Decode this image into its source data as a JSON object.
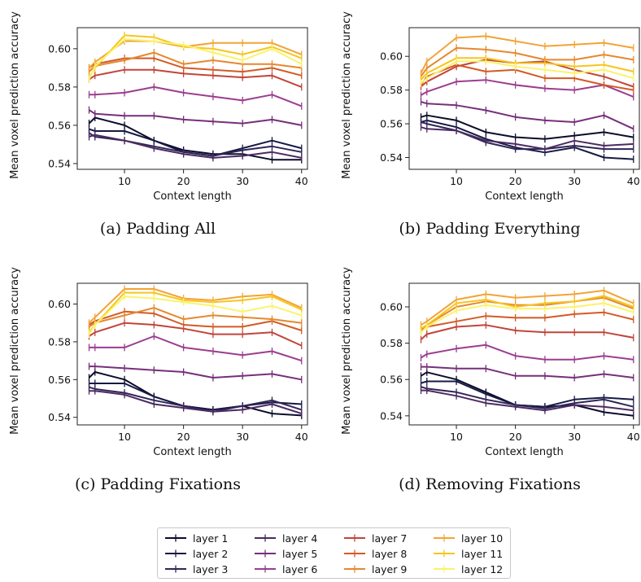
{
  "captions": [
    "(a) Padding All",
    "(b) Padding Everything",
    "(c) Padding Fixations",
    "(d) Removing Fixations"
  ],
  "legend": {
    "labels": [
      "layer 1",
      "layer 2",
      "layer 3",
      "layer 4",
      "layer 5",
      "layer 6",
      "layer 7",
      "layer 8",
      "layer 9",
      "layer 10",
      "layer 11",
      "layer 12"
    ],
    "colors": [
      "#0b0c2a",
      "#161944",
      "#2e2657",
      "#4d2a62",
      "#762f7a",
      "#9b3d8f",
      "#c1453b",
      "#d35a26",
      "#e6882d",
      "#f2a336",
      "#f6c51f",
      "#faf36a"
    ]
  },
  "chart_data": [
    {
      "type": "line",
      "title": "",
      "xlabel": "Context length",
      "ylabel": "Mean voxel prediction accuracy",
      "xlim": [
        2,
        41
      ],
      "ylim": [
        0.537,
        0.611
      ],
      "xticks": [
        10,
        20,
        30,
        40
      ],
      "yticks": [
        0.54,
        0.56,
        0.58,
        0.6
      ],
      "x": [
        4,
        5,
        10,
        15,
        20,
        25,
        30,
        35,
        40
      ],
      "series": [
        {
          "name": "layer 1",
          "values": [
            0.561,
            0.564,
            0.56,
            0.552,
            0.547,
            0.545,
            0.545,
            0.542,
            0.542
          ]
        },
        {
          "name": "layer 2",
          "values": [
            0.558,
            0.557,
            0.557,
            0.552,
            0.546,
            0.544,
            0.548,
            0.552,
            0.548
          ]
        },
        {
          "name": "layer 3",
          "values": [
            0.556,
            0.554,
            0.552,
            0.549,
            0.546,
            0.544,
            0.547,
            0.549,
            0.546
          ]
        },
        {
          "name": "layer 4",
          "values": [
            0.554,
            0.555,
            0.552,
            0.548,
            0.545,
            0.543,
            0.544,
            0.546,
            0.543
          ]
        },
        {
          "name": "layer 5",
          "values": [
            0.568,
            0.566,
            0.565,
            0.565,
            0.563,
            0.562,
            0.561,
            0.563,
            0.56
          ]
        },
        {
          "name": "layer 6",
          "values": [
            0.576,
            0.576,
            0.577,
            0.58,
            0.577,
            0.575,
            0.573,
            0.576,
            0.57
          ]
        },
        {
          "name": "layer 7",
          "values": [
            0.584,
            0.586,
            0.589,
            0.589,
            0.587,
            0.586,
            0.585,
            0.586,
            0.58
          ]
        },
        {
          "name": "layer 8",
          "values": [
            0.59,
            0.592,
            0.595,
            0.595,
            0.59,
            0.589,
            0.588,
            0.59,
            0.586
          ]
        },
        {
          "name": "layer 9",
          "values": [
            0.588,
            0.591,
            0.594,
            0.598,
            0.592,
            0.594,
            0.592,
            0.592,
            0.59
          ]
        },
        {
          "name": "layer 10",
          "values": [
            0.59,
            0.593,
            0.604,
            0.604,
            0.601,
            0.603,
            0.603,
            0.603,
            0.597
          ]
        },
        {
          "name": "layer 11",
          "values": [
            0.585,
            0.59,
            0.607,
            0.606,
            0.601,
            0.6,
            0.597,
            0.601,
            0.595
          ]
        },
        {
          "name": "layer 12",
          "values": [
            0.584,
            0.591,
            0.605,
            0.604,
            0.602,
            0.598,
            0.594,
            0.6,
            0.592
          ]
        }
      ]
    },
    {
      "type": "line",
      "title": "",
      "xlabel": "Context length",
      "ylabel": "Mean voxel prediction accuracy",
      "xlim": [
        2,
        41
      ],
      "ylim": [
        0.533,
        0.617
      ],
      "xticks": [
        10,
        20,
        30,
        40
      ],
      "yticks": [
        0.54,
        0.56,
        0.58,
        0.6
      ],
      "x": [
        4,
        5,
        10,
        15,
        20,
        25,
        30,
        35,
        40
      ],
      "series": [
        {
          "name": "layer 1",
          "values": [
            0.564,
            0.565,
            0.562,
            0.555,
            0.552,
            0.551,
            0.553,
            0.555,
            0.552
          ]
        },
        {
          "name": "layer 2",
          "values": [
            0.561,
            0.562,
            0.558,
            0.551,
            0.546,
            0.543,
            0.546,
            0.54,
            0.539
          ]
        },
        {
          "name": "layer 3",
          "values": [
            0.561,
            0.56,
            0.556,
            0.549,
            0.545,
            0.545,
            0.547,
            0.545,
            0.545
          ]
        },
        {
          "name": "layer 4",
          "values": [
            0.558,
            0.557,
            0.556,
            0.55,
            0.548,
            0.545,
            0.55,
            0.547,
            0.548
          ]
        },
        {
          "name": "layer 5",
          "values": [
            0.573,
            0.572,
            0.571,
            0.568,
            0.564,
            0.562,
            0.561,
            0.565,
            0.557
          ]
        },
        {
          "name": "layer 6",
          "values": [
            0.577,
            0.579,
            0.585,
            0.586,
            0.583,
            0.581,
            0.58,
            0.583,
            0.576
          ]
        },
        {
          "name": "layer 7",
          "values": [
            0.582,
            0.585,
            0.594,
            0.598,
            0.596,
            0.597,
            0.592,
            0.588,
            0.582
          ]
        },
        {
          "name": "layer 8",
          "values": [
            0.583,
            0.588,
            0.595,
            0.591,
            0.592,
            0.587,
            0.587,
            0.583,
            0.58
          ]
        },
        {
          "name": "layer 9",
          "values": [
            0.588,
            0.593,
            0.605,
            0.604,
            0.602,
            0.598,
            0.598,
            0.601,
            0.598
          ]
        },
        {
          "name": "layer 10",
          "values": [
            0.59,
            0.597,
            0.611,
            0.612,
            0.609,
            0.606,
            0.607,
            0.608,
            0.605
          ]
        },
        {
          "name": "layer 11",
          "values": [
            0.586,
            0.59,
            0.599,
            0.599,
            0.596,
            0.596,
            0.594,
            0.595,
            0.591
          ]
        },
        {
          "name": "layer 12",
          "values": [
            0.584,
            0.587,
            0.597,
            0.597,
            0.594,
            0.592,
            0.59,
            0.592,
            0.587
          ]
        }
      ]
    },
    {
      "type": "line",
      "title": "",
      "xlabel": "Context length",
      "ylabel": "Mean voxel prediction accuracy",
      "xlim": [
        2,
        41
      ],
      "ylim": [
        0.536,
        0.611
      ],
      "xticks": [
        10,
        20,
        30,
        40
      ],
      "yticks": [
        0.54,
        0.56,
        0.58,
        0.6
      ],
      "x": [
        4,
        5,
        10,
        15,
        20,
        25,
        30,
        35,
        40
      ],
      "series": [
        {
          "name": "layer 1",
          "values": [
            0.561,
            0.564,
            0.56,
            0.551,
            0.546,
            0.544,
            0.546,
            0.542,
            0.541
          ]
        },
        {
          "name": "layer 2",
          "values": [
            0.558,
            0.558,
            0.558,
            0.551,
            0.546,
            0.544,
            0.546,
            0.548,
            0.547
          ]
        },
        {
          "name": "layer 3",
          "values": [
            0.556,
            0.555,
            0.553,
            0.549,
            0.546,
            0.543,
            0.546,
            0.549,
            0.544
          ]
        },
        {
          "name": "layer 4",
          "values": [
            0.554,
            0.554,
            0.552,
            0.547,
            0.545,
            0.543,
            0.544,
            0.547,
            0.542
          ]
        },
        {
          "name": "layer 5",
          "values": [
            0.567,
            0.567,
            0.566,
            0.565,
            0.564,
            0.561,
            0.562,
            0.563,
            0.56
          ]
        },
        {
          "name": "layer 6",
          "values": [
            0.577,
            0.577,
            0.577,
            0.583,
            0.577,
            0.575,
            0.573,
            0.575,
            0.57
          ]
        },
        {
          "name": "layer 7",
          "values": [
            0.583,
            0.585,
            0.59,
            0.589,
            0.587,
            0.584,
            0.584,
            0.585,
            0.578
          ]
        },
        {
          "name": "layer 8",
          "values": [
            0.589,
            0.591,
            0.596,
            0.595,
            0.589,
            0.588,
            0.588,
            0.591,
            0.586
          ]
        },
        {
          "name": "layer 9",
          "values": [
            0.588,
            0.59,
            0.594,
            0.598,
            0.592,
            0.594,
            0.593,
            0.592,
            0.59
          ]
        },
        {
          "name": "layer 10",
          "values": [
            0.59,
            0.593,
            0.608,
            0.608,
            0.603,
            0.602,
            0.604,
            0.605,
            0.598
          ]
        },
        {
          "name": "layer 11",
          "values": [
            0.585,
            0.589,
            0.606,
            0.606,
            0.602,
            0.601,
            0.602,
            0.604,
            0.597
          ]
        },
        {
          "name": "layer 12",
          "values": [
            0.584,
            0.589,
            0.604,
            0.603,
            0.601,
            0.599,
            0.596,
            0.599,
            0.594
          ]
        }
      ]
    },
    {
      "type": "line",
      "title": "",
      "xlabel": "Context length",
      "ylabel": "Mean voxel prediction accuracy",
      "xlim": [
        2,
        41
      ],
      "ylim": [
        0.535,
        0.613
      ],
      "xticks": [
        10,
        20,
        30,
        40
      ],
      "yticks": [
        0.54,
        0.56,
        0.58,
        0.6
      ],
      "x": [
        4,
        5,
        10,
        15,
        20,
        25,
        30,
        35,
        40
      ],
      "series": [
        {
          "name": "layer 1",
          "values": [
            0.562,
            0.564,
            0.56,
            0.553,
            0.546,
            0.545,
            0.546,
            0.542,
            0.54
          ]
        },
        {
          "name": "layer 2",
          "values": [
            0.558,
            0.559,
            0.559,
            0.552,
            0.546,
            0.545,
            0.549,
            0.55,
            0.549
          ]
        },
        {
          "name": "layer 3",
          "values": [
            0.556,
            0.555,
            0.553,
            0.549,
            0.546,
            0.544,
            0.547,
            0.549,
            0.545
          ]
        },
        {
          "name": "layer 4",
          "values": [
            0.554,
            0.554,
            0.551,
            0.547,
            0.545,
            0.543,
            0.546,
            0.545,
            0.543
          ]
        },
        {
          "name": "layer 5",
          "values": [
            0.567,
            0.567,
            0.566,
            0.566,
            0.562,
            0.562,
            0.561,
            0.563,
            0.561
          ]
        },
        {
          "name": "layer 6",
          "values": [
            0.572,
            0.574,
            0.577,
            0.579,
            0.573,
            0.571,
            0.571,
            0.573,
            0.571
          ]
        },
        {
          "name": "layer 7",
          "values": [
            0.582,
            0.585,
            0.589,
            0.59,
            0.587,
            0.586,
            0.586,
            0.586,
            0.583
          ]
        },
        {
          "name": "layer 8",
          "values": [
            0.587,
            0.589,
            0.592,
            0.595,
            0.594,
            0.594,
            0.596,
            0.597,
            0.593
          ]
        },
        {
          "name": "layer 9",
          "values": [
            0.588,
            0.59,
            0.6,
            0.603,
            0.601,
            0.601,
            0.603,
            0.605,
            0.599
          ]
        },
        {
          "name": "layer 10",
          "values": [
            0.59,
            0.592,
            0.604,
            0.607,
            0.605,
            0.606,
            0.607,
            0.609,
            0.602
          ]
        },
        {
          "name": "layer 11",
          "values": [
            0.588,
            0.59,
            0.602,
            0.604,
            0.6,
            0.602,
            0.603,
            0.606,
            0.6
          ]
        },
        {
          "name": "layer 12",
          "values": [
            0.586,
            0.589,
            0.598,
            0.601,
            0.599,
            0.599,
            0.6,
            0.602,
            0.597
          ]
        }
      ]
    }
  ]
}
